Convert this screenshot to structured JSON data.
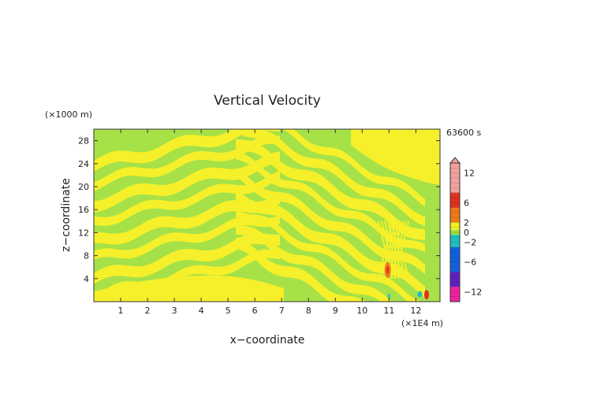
{
  "chart_data": {
    "type": "heatmap",
    "title": "Vertical Velocity",
    "xlabel": "x−coordinate",
    "ylabel": "z−coordinate",
    "x_unit": "(×1E4 m)",
    "y_unit": "(×1000 m)",
    "time_label": "63600 s",
    "xlim": [
      0,
      12.9
    ],
    "ylim": [
      0,
      30
    ],
    "x_ticks": [
      1,
      2,
      3,
      4,
      5,
      6,
      7,
      8,
      9,
      10,
      11,
      12
    ],
    "y_ticks": [
      4,
      8,
      12,
      16,
      20,
      24,
      28
    ],
    "colorbar": {
      "labels": [
        "12",
        "6",
        "2",
        "0",
        "−2",
        "−6",
        "−12"
      ],
      "label_values": [
        12,
        6,
        2,
        0,
        -2,
        -6,
        -12
      ],
      "range": [
        -14,
        14
      ],
      "colors": {
        "pos_high": "#f4a0a0",
        "pos_mid": "#e03020",
        "pos_low": "#f07818",
        "weak_pos": "#f0f020",
        "weak_neg": "#a0e040",
        "neg_low": "#20c0c0",
        "neg_mid": "#1060e0",
        "neg_high": "#6020c0",
        "neg_extreme": "#f020a0"
      }
    },
    "field_colors": {
      "up": "#f5f02a",
      "down": "#a6e148"
    },
    "grid": false
  }
}
